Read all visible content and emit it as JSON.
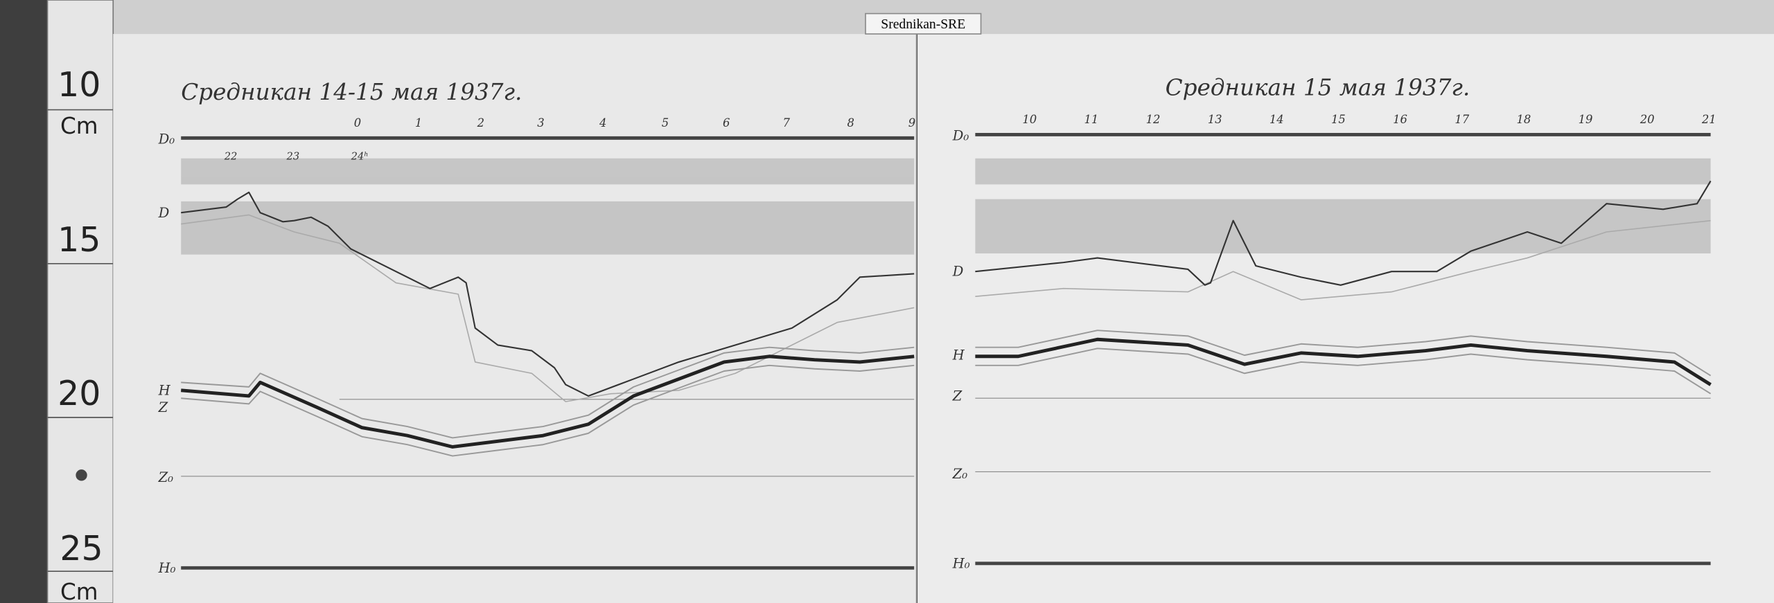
{
  "header": {
    "tag": "Srednikan-SRE"
  },
  "ruler": {
    "labels": [
      "10",
      "Cm",
      "15",
      "20",
      "25",
      "Cm"
    ]
  },
  "panels": [
    {
      "title": "Средникан 14-15 мая 1937г.",
      "hours": [
        "0",
        "1",
        "2",
        "3",
        "4",
        "5",
        "6",
        "7",
        "8",
        "9"
      ],
      "hours_prev": [
        "22",
        "23",
        "24ʰ"
      ],
      "traces": [
        "D₀",
        "D",
        "H",
        "Z",
        "Z₀",
        "H₀"
      ]
    },
    {
      "title": "Средникан 15 мая 1937г.",
      "hours": [
        "10",
        "11",
        "12",
        "13",
        "14",
        "15",
        "16",
        "17",
        "18",
        "19",
        "20",
        "21"
      ],
      "traces": [
        "D₀",
        "D",
        "H",
        "Z",
        "Z₀",
        "H₀"
      ]
    }
  ]
}
